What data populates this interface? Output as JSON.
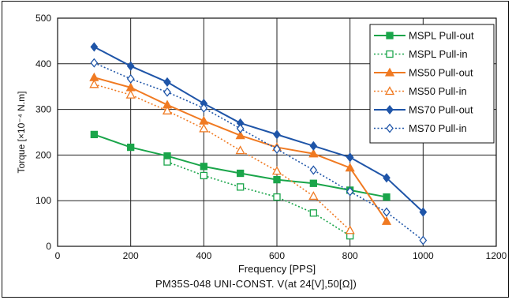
{
  "chart_data": {
    "type": "line",
    "caption": "PM35S-048 UNI-CONST. V(at 24[V],50[Ω])",
    "xlabel": "Frequency [PPS]",
    "ylabel": "Torque [×10⁻⁴ N.m]",
    "xlim": [
      0,
      1200
    ],
    "ylim": [
      0,
      500
    ],
    "xticks": [
      "0",
      "200",
      "400",
      "600",
      "800",
      "1000",
      "1200"
    ],
    "yticks": [
      "0",
      "100",
      "200",
      "300",
      "400",
      "500"
    ],
    "grid": true,
    "legend_position": "top-right",
    "series": [
      {
        "name": "MSPL Pull-out",
        "color": "#1aa54a",
        "style": "solid",
        "marker": "square-filled",
        "x": [
          100,
          200,
          300,
          400,
          500,
          600,
          700,
          800,
          900
        ],
        "y": [
          245,
          217,
          198,
          175,
          160,
          146,
          138,
          123,
          108
        ]
      },
      {
        "name": "MSPL Pull-in",
        "color": "#1aa54a",
        "style": "dotted",
        "marker": "square-open",
        "x": [
          300,
          400,
          500,
          600,
          700,
          800
        ],
        "y": [
          185,
          155,
          130,
          108,
          73,
          23
        ]
      },
      {
        "name": "MS50  Pull-out",
        "color": "#f07a22",
        "style": "solid",
        "marker": "triangle-filled",
        "x": [
          100,
          200,
          300,
          400,
          500,
          600,
          700,
          800,
          900
        ],
        "y": [
          370,
          348,
          310,
          275,
          243,
          217,
          203,
          172,
          55
        ]
      },
      {
        "name": "MS50  Pull-in",
        "color": "#f07a22",
        "style": "dotted",
        "marker": "triangle-open",
        "x": [
          100,
          200,
          300,
          400,
          500,
          600,
          700,
          800
        ],
        "y": [
          355,
          332,
          297,
          258,
          210,
          165,
          110,
          35
        ]
      },
      {
        "name": "MS70  Pull-out",
        "color": "#1f55a8",
        "style": "solid",
        "marker": "diamond-filled",
        "x": [
          100,
          200,
          300,
          400,
          500,
          600,
          700,
          800,
          900,
          1000
        ],
        "y": [
          437,
          395,
          360,
          313,
          270,
          245,
          220,
          195,
          150,
          75
        ]
      },
      {
        "name": "MS70  Pull-in",
        "color": "#1f55a8",
        "style": "dotted",
        "marker": "diamond-open",
        "x": [
          100,
          200,
          300,
          400,
          500,
          600,
          700,
          800,
          900,
          1000
        ],
        "y": [
          402,
          367,
          338,
          303,
          258,
          213,
          167,
          120,
          75,
          13
        ]
      }
    ]
  }
}
